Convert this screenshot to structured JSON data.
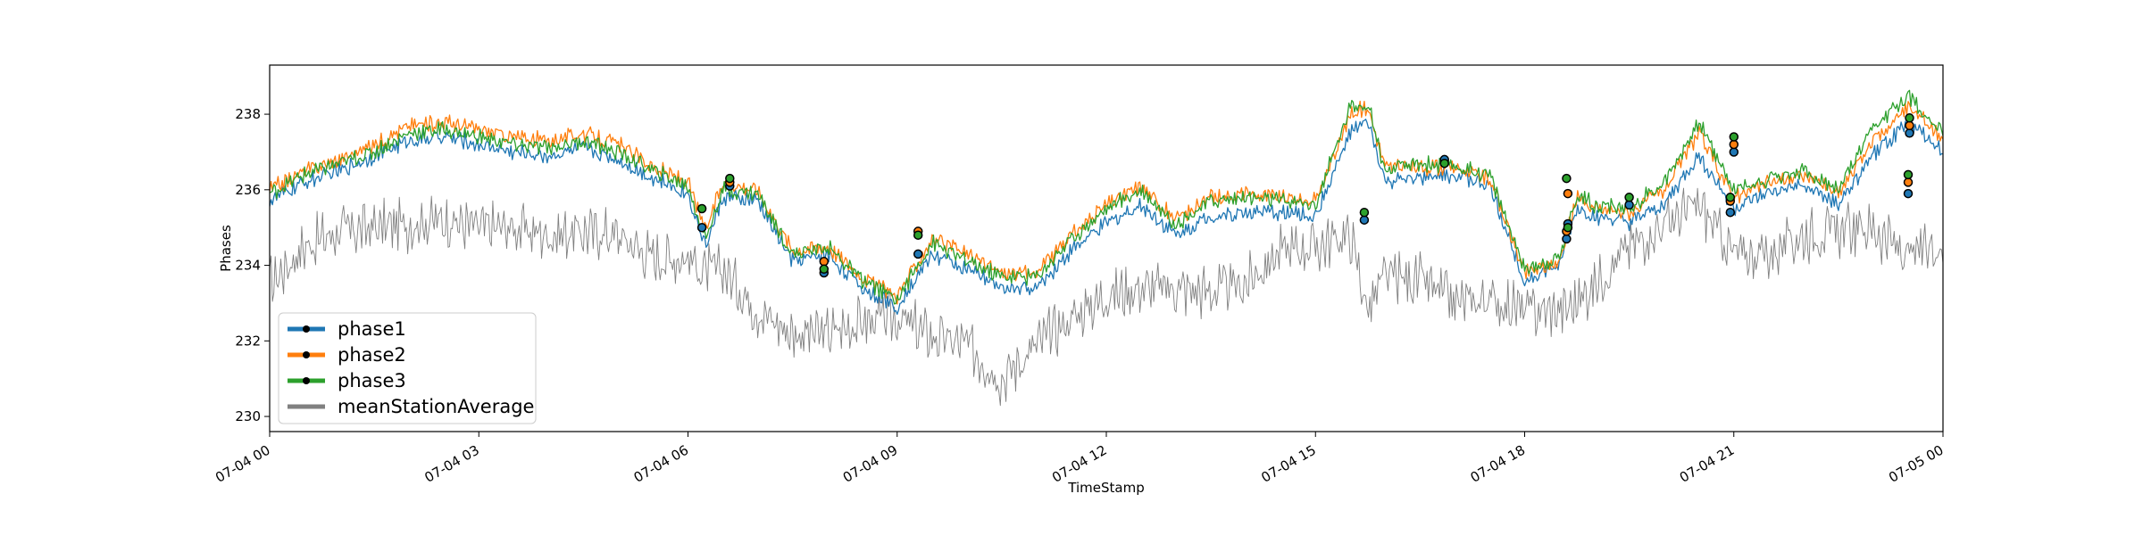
{
  "chart_data": {
    "type": "line",
    "title": "",
    "xlabel": "TimeStamp",
    "ylabel": "Phases",
    "xlim": [
      "07-04 00",
      "07-05 00"
    ],
    "ylim": [
      229.6,
      239.3
    ],
    "grid": false,
    "legend_position": "lower-left",
    "x_ticks": [
      "07-04 00",
      "07-04 03",
      "07-04 06",
      "07-04 09",
      "07-04 12",
      "07-04 15",
      "07-04 18",
      "07-04 21",
      "07-05 00"
    ],
    "y_ticks": [
      230,
      232,
      234,
      236,
      238
    ],
    "x_hours": [
      0,
      0.5,
      1,
      1.5,
      2,
      2.5,
      3,
      3.5,
      4,
      4.5,
      5,
      5.5,
      6,
      6.25,
      6.5,
      7,
      7.5,
      8,
      8.5,
      9,
      9.5,
      10,
      10.5,
      11,
      11.5,
      12,
      12.5,
      13,
      13.5,
      14,
      14.5,
      15,
      15.5,
      15.75,
      16,
      16.5,
      17,
      17.5,
      18,
      18.5,
      18.75,
      19,
      19.5,
      20,
      20.5,
      21,
      21.5,
      22,
      22.5,
      23,
      23.5,
      24
    ],
    "series": [
      {
        "name": "phase1",
        "color": "#1f77b4",
        "values": [
          235.7,
          236.2,
          236.5,
          236.9,
          237.3,
          237.4,
          237.2,
          237.0,
          236.9,
          237.1,
          236.8,
          236.3,
          235.9,
          234.5,
          235.8,
          235.7,
          234.1,
          234.3,
          233.4,
          232.9,
          234.3,
          233.9,
          233.4,
          233.4,
          234.4,
          235.1,
          235.6,
          234.8,
          235.3,
          235.4,
          235.4,
          235.3,
          237.5,
          237.8,
          236.2,
          236.3,
          236.4,
          236.1,
          233.6,
          234.0,
          235.5,
          235.3,
          235.1,
          235.6,
          236.9,
          235.5,
          235.9,
          236.1,
          235.6,
          236.9,
          237.8,
          237.0
        ]
      },
      {
        "name": "phase2",
        "color": "#ff7f0e",
        "values": [
          236.0,
          236.5,
          236.8,
          237.2,
          237.7,
          237.8,
          237.6,
          237.4,
          237.3,
          237.5,
          237.2,
          236.6,
          236.2,
          234.9,
          236.2,
          236.0,
          234.4,
          234.5,
          233.7,
          233.2,
          234.7,
          234.3,
          233.8,
          233.8,
          234.8,
          235.6,
          236.1,
          235.2,
          235.8,
          235.9,
          235.8,
          235.7,
          238.0,
          238.2,
          236.6,
          236.6,
          236.6,
          236.3,
          233.8,
          234.1,
          235.8,
          235.5,
          235.4,
          236.0,
          237.5,
          235.8,
          236.2,
          236.4,
          235.9,
          237.3,
          238.2,
          237.4
        ]
      },
      {
        "name": "phase3",
        "color": "#2ca02c",
        "values": [
          235.9,
          236.4,
          236.7,
          237.0,
          237.5,
          237.6,
          237.4,
          237.2,
          237.1,
          237.3,
          237.0,
          236.5,
          236.1,
          234.7,
          236.0,
          235.9,
          234.3,
          234.5,
          233.6,
          233.1,
          234.6,
          234.1,
          233.7,
          233.7,
          234.7,
          235.5,
          236.0,
          235.1,
          235.7,
          235.8,
          235.7,
          235.6,
          238.2,
          238.3,
          236.5,
          236.7,
          236.6,
          236.4,
          233.9,
          234.2,
          235.9,
          235.6,
          235.5,
          236.2,
          237.8,
          236.0,
          236.3,
          236.5,
          236.0,
          237.6,
          238.5,
          237.5
        ]
      },
      {
        "name": "meanStationAverage",
        "color": "#808080",
        "values": [
          233.5,
          234.5,
          234.9,
          235.0,
          235.1,
          235.2,
          235.0,
          235.0,
          234.8,
          234.9,
          234.8,
          234.2,
          234.2,
          233.8,
          233.9,
          232.8,
          232.2,
          232.2,
          232.5,
          232.6,
          232.1,
          231.9,
          231.0,
          231.9,
          232.6,
          233.2,
          233.4,
          233.4,
          233.3,
          233.5,
          234.4,
          234.5,
          234.8,
          232.8,
          233.7,
          233.6,
          233.0,
          233.1,
          232.8,
          232.8,
          233.0,
          233.5,
          234.5,
          235.1,
          235.6,
          234.3,
          234.3,
          234.8,
          234.9,
          235.0,
          234.2,
          234.6
        ]
      }
    ],
    "markers": [
      {
        "series": "phase1",
        "points": [
          [
            6.2,
            235.0
          ],
          [
            6.6,
            236.1
          ],
          [
            7.95,
            233.8
          ],
          [
            9.3,
            234.3
          ],
          [
            15.7,
            235.2
          ],
          [
            16.85,
            236.8
          ],
          [
            18.6,
            234.7
          ],
          [
            18.62,
            235.1
          ],
          [
            19.5,
            235.6
          ],
          [
            20.95,
            235.4
          ],
          [
            21.0,
            237.0
          ],
          [
            23.5,
            235.9
          ],
          [
            23.52,
            237.5
          ]
        ]
      },
      {
        "series": "phase2",
        "points": [
          [
            6.6,
            236.2
          ],
          [
            7.95,
            234.1
          ],
          [
            9.3,
            234.9
          ],
          [
            18.6,
            234.9
          ],
          [
            18.62,
            235.9
          ],
          [
            20.95,
            235.7
          ],
          [
            21.0,
            237.2
          ],
          [
            23.5,
            236.2
          ],
          [
            23.52,
            237.7
          ]
        ]
      },
      {
        "series": "phase3",
        "points": [
          [
            6.2,
            235.5
          ],
          [
            6.6,
            236.3
          ],
          [
            7.95,
            233.9
          ],
          [
            9.3,
            234.8
          ],
          [
            15.7,
            235.4
          ],
          [
            16.85,
            236.7
          ],
          [
            18.6,
            236.3
          ],
          [
            18.62,
            235.0
          ],
          [
            19.5,
            235.8
          ],
          [
            20.95,
            235.8
          ],
          [
            21.0,
            237.4
          ],
          [
            23.5,
            236.4
          ],
          [
            23.52,
            237.9
          ]
        ]
      }
    ]
  }
}
